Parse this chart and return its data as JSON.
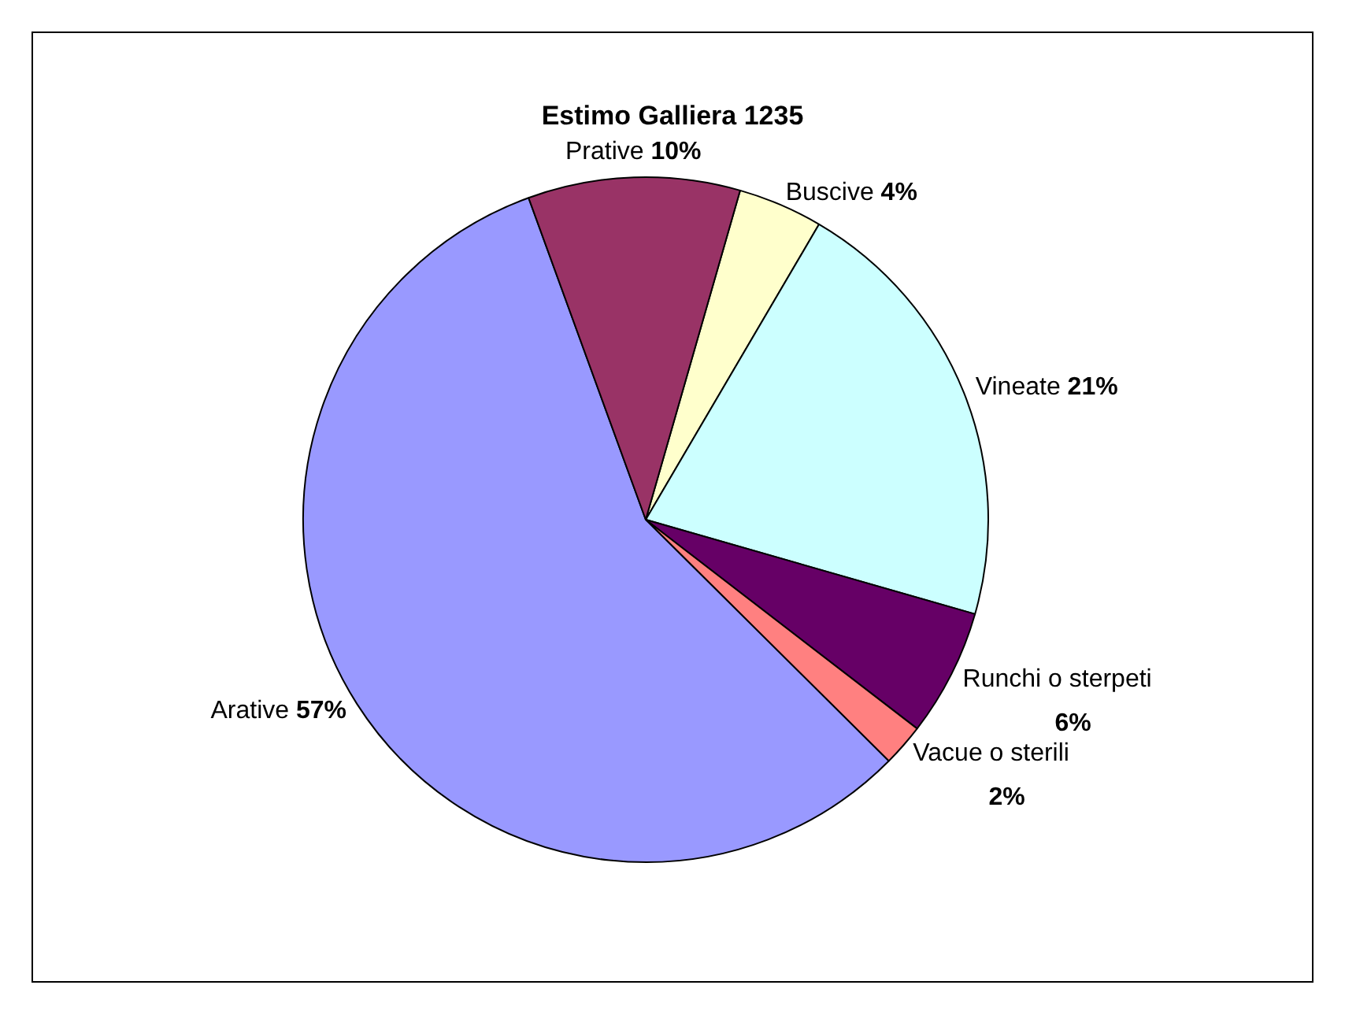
{
  "chart_data": {
    "type": "pie",
    "title": "Estimo Galliera 1235",
    "categories": [
      "Buscive",
      "Vineate",
      "Runchi o sterpeti",
      "Vacue o sterili",
      "Arative",
      "Prative"
    ],
    "values": [
      4,
      21,
      6,
      2,
      57,
      10
    ],
    "colors": [
      "#ffffcc",
      "#ccffff",
      "#660066",
      "#ff8080",
      "#9999ff",
      "#993366"
    ],
    "value_labels": [
      "4%",
      "21%",
      "6%",
      "2%",
      "57%",
      "10%"
    ],
    "legend": false
  }
}
